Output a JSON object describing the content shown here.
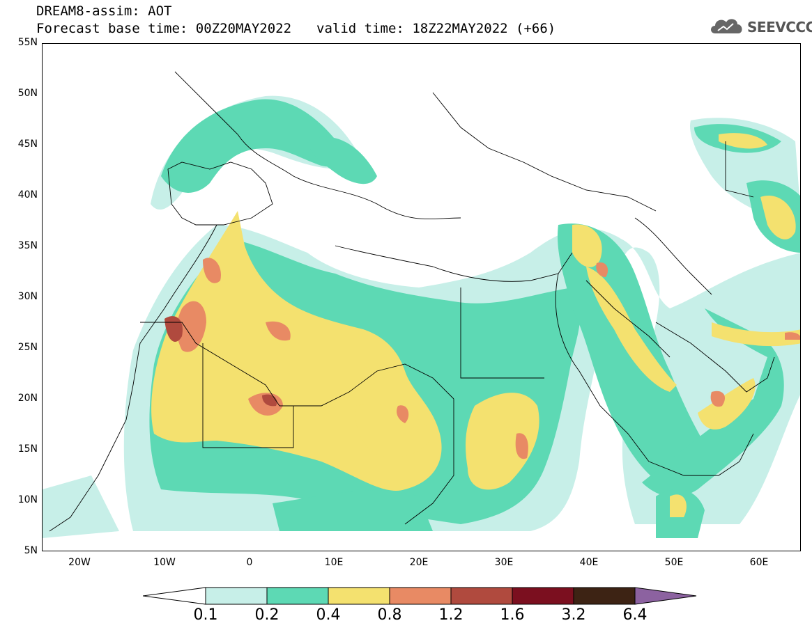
{
  "header": {
    "title": "DREAM8-assim: AOT",
    "base_time": "Forecast base time: 00Z20MAY2022",
    "valid_time": "valid time: 18Z22MAY2022 (+66)"
  },
  "logo": {
    "text": "SEEVCCC",
    "icon": "cloud-icon"
  },
  "map": {
    "lat_labels": [
      "55N",
      "50N",
      "45N",
      "40N",
      "35N",
      "30N",
      "25N",
      "20N",
      "15N",
      "10N",
      "5N"
    ],
    "lon_labels": [
      "20W",
      "10W",
      "0",
      "10E",
      "20E",
      "30E",
      "40E",
      "50E",
      "60E"
    ]
  },
  "colorbar": {
    "labels": [
      "0.1",
      "0.2",
      "0.4",
      "0.8",
      "1.2",
      "1.6",
      "3.2",
      "6.4"
    ],
    "colors": [
      "#c7efe8",
      "#5dd9b4",
      "#f4e16f",
      "#e88a64",
      "#b04a3e",
      "#7b0f1f",
      "#3d2314",
      "#8c62a0"
    ]
  }
}
